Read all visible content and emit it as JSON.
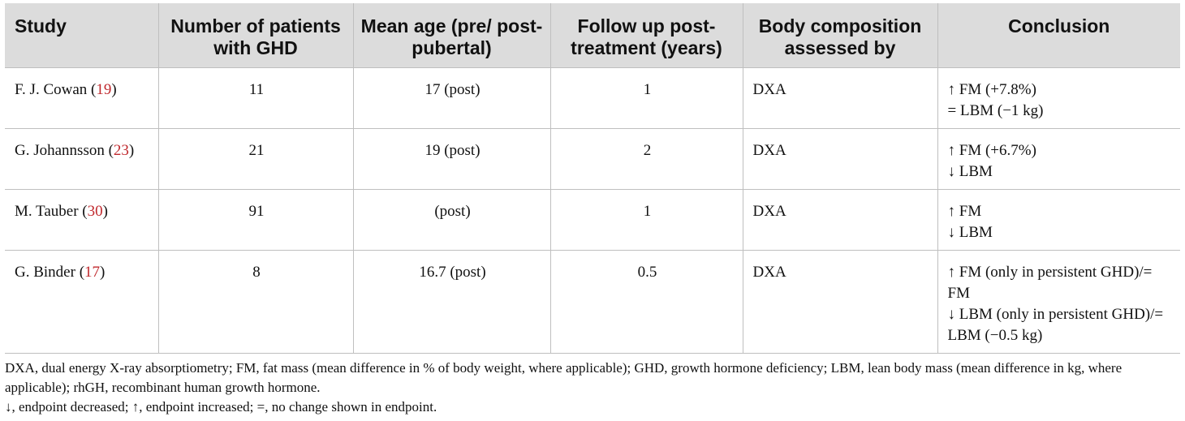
{
  "table": {
    "headers": [
      "Study",
      "Number of patients with GHD",
      "Mean age (pre/ post-pubertal)",
      "Follow up post-treatment (years)",
      "Body composition assessed by",
      "Conclusion"
    ],
    "rows": [
      {
        "study_name": "F. J. Cowan",
        "ref": "19",
        "patients": "11",
        "age": "17 (post)",
        "followup": "1",
        "method": "DXA",
        "conclusion": [
          "↑ FM (+7.8%)",
          "= LBM (−1 kg)"
        ]
      },
      {
        "study_name": "G. Johannsson",
        "ref": "23",
        "patients": "21",
        "age": "19 (post)",
        "followup": "2",
        "method": "DXA",
        "conclusion": [
          "↑ FM (+6.7%)",
          "↓ LBM"
        ]
      },
      {
        "study_name": "M. Tauber",
        "ref": "30",
        "patients": "91",
        "age": "(post)",
        "followup": "1",
        "method": "DXA",
        "conclusion": [
          "↑ FM",
          "↓ LBM"
        ]
      },
      {
        "study_name": "G. Binder",
        "ref": "17",
        "patients": "8",
        "age": "16.7 (post)",
        "followup": "0.5",
        "method": "DXA",
        "conclusion": [
          "↑ FM (only in persistent GHD)/= FM",
          "↓ LBM (only in persistent GHD)/= LBM (−0.5 kg)"
        ]
      }
    ]
  },
  "footnotes": {
    "abbreviations": "DXA, dual energy X-ray absorptiometry; FM, fat mass (mean difference in % of body weight, where applicable); GHD, growth hormone deficiency; LBM, lean body mass (mean difference in kg, where applicable); rhGH, recombinant human growth hormone.",
    "symbols": "↓, endpoint decreased; ↑, endpoint increased; =, no change shown in endpoint."
  }
}
